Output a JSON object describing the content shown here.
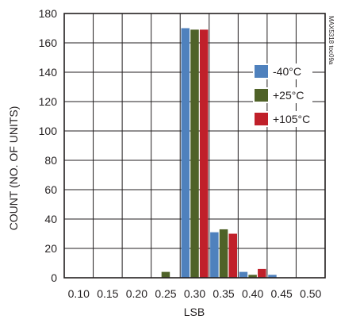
{
  "chart_data": {
    "type": "bar",
    "xlabel": "LSB",
    "ylabel": "COUNT (NO. OF UNITS)",
    "figure_ref": "MAX5318 toc09a",
    "categories": [
      "0.10",
      "0.15",
      "0.20",
      "0.25",
      "0.30",
      "0.35",
      "0.40",
      "0.45",
      "0.50"
    ],
    "ylim": [
      0,
      180
    ],
    "yticks": [
      0,
      20,
      40,
      60,
      80,
      100,
      120,
      140,
      160,
      180
    ],
    "grid": true,
    "legend_position": "right",
    "series": [
      {
        "name": "-40°C",
        "color": "#4f81bd",
        "values": [
          0,
          0,
          0,
          0,
          170,
          31,
          4,
          2,
          0
        ]
      },
      {
        "name": "+25°C",
        "color": "#4f6228",
        "values": [
          0,
          0,
          0,
          4,
          169,
          33,
          2,
          0,
          0
        ]
      },
      {
        "name": "+105°C",
        "color": "#c0202a",
        "values": [
          0,
          0,
          0,
          0,
          169,
          30,
          6,
          0,
          0
        ]
      }
    ]
  }
}
